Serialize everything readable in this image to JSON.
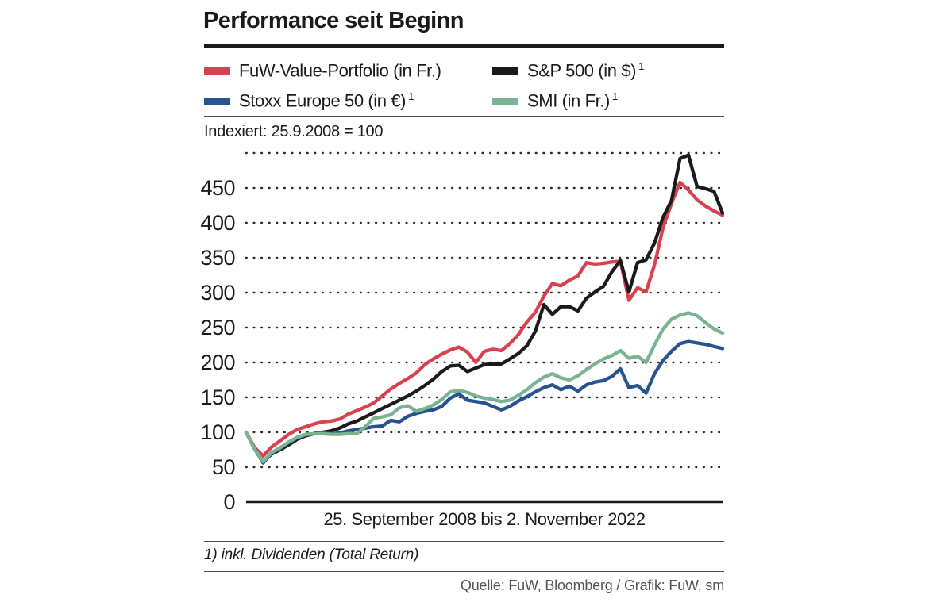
{
  "title": "Performance seit Beginn",
  "legend": [
    {
      "label": "FuW-Value-Portfolio (in Fr.)",
      "sup": "",
      "color": "#d8414f"
    },
    {
      "label": "S&P 500 (in $)",
      "sup": "1",
      "color": "#1a1a1a"
    },
    {
      "label": "Stoxx Europe 50 (in €)",
      "sup": "1",
      "color": "#27538f"
    },
    {
      "label": "SMI (in Fr.)",
      "sup": "1",
      "color": "#7ab392"
    }
  ],
  "index_note": "Indexiert: 25.9.2008 = 100",
  "x_axis_label": "25. September 2008 bis 2. November 2022",
  "footnote": "1) inkl. Dividenden (Total Return)",
  "source": "Quelle: FuW, Bloomberg / Grafik: FuW, sm",
  "chart_data": {
    "type": "line",
    "title": "Performance seit Beginn",
    "x_range": [
      "25.9.2008",
      "2.11.2022"
    ],
    "index_base": 100,
    "ylim": [
      0,
      500
    ],
    "y_ticks": [
      0,
      50,
      100,
      150,
      200,
      250,
      300,
      350,
      400,
      450
    ],
    "y_grid_max": 500,
    "grid": "dotted horizontal",
    "legend_position": "top",
    "series": [
      {
        "name": "FuW-Value-Portfolio (in Fr.)",
        "color": "#d8414f",
        "values": [
          100,
          78,
          66,
          79,
          88,
          97,
          104,
          108,
          112,
          115,
          116,
          119,
          126,
          131,
          136,
          142,
          152,
          162,
          170,
          177,
          185,
          197,
          205,
          212,
          218,
          222,
          215,
          200,
          216,
          219,
          217,
          227,
          240,
          258,
          272,
          295,
          313,
          310,
          318,
          324,
          343,
          341,
          342,
          344,
          345,
          289,
          307,
          301,
          340,
          393,
          428,
          458,
          447,
          433,
          424,
          417,
          411
        ]
      },
      {
        "name": "S&P 500 (in $)",
        "color": "#1a1a1a",
        "values": [
          100,
          76,
          57,
          69,
          75,
          82,
          90,
          95,
          98,
          100,
          102,
          106,
          112,
          116,
          122,
          128,
          134,
          140,
          146,
          152,
          159,
          167,
          176,
          187,
          195,
          196,
          187,
          192,
          197,
          198,
          198,
          205,
          213,
          224,
          245,
          283,
          269,
          280,
          280,
          274,
          292,
          301,
          309,
          330,
          346,
          301,
          343,
          347,
          371,
          408,
          432,
          492,
          497,
          452,
          449,
          445,
          414
        ]
      },
      {
        "name": "Stoxx Europe 50 (in €)",
        "color": "#27538f",
        "values": [
          100,
          77,
          56,
          70,
          77,
          85,
          92,
          96,
          98,
          99,
          98,
          99,
          102,
          104,
          106,
          108,
          109,
          117,
          115,
          123,
          127,
          130,
          132,
          137,
          149,
          155,
          146,
          144,
          142,
          137,
          132,
          137,
          145,
          151,
          158,
          164,
          168,
          161,
          166,
          159,
          168,
          172,
          174,
          180,
          191,
          164,
          167,
          156,
          184,
          203,
          216,
          227,
          230,
          228,
          226,
          223,
          220
        ]
      },
      {
        "name": "SMI (in Fr.)",
        "color": "#7ab392",
        "values": [
          100,
          76,
          58,
          71,
          78,
          86,
          93,
          97,
          98,
          98,
          97,
          97,
          98,
          98,
          108,
          120,
          122,
          125,
          135,
          138,
          130,
          134,
          139,
          147,
          158,
          160,
          157,
          152,
          149,
          147,
          144,
          146,
          153,
          161,
          171,
          179,
          184,
          178,
          175,
          181,
          190,
          198,
          205,
          210,
          217,
          206,
          209,
          200,
          225,
          248,
          262,
          268,
          271,
          267,
          257,
          248,
          242
        ]
      }
    ]
  }
}
